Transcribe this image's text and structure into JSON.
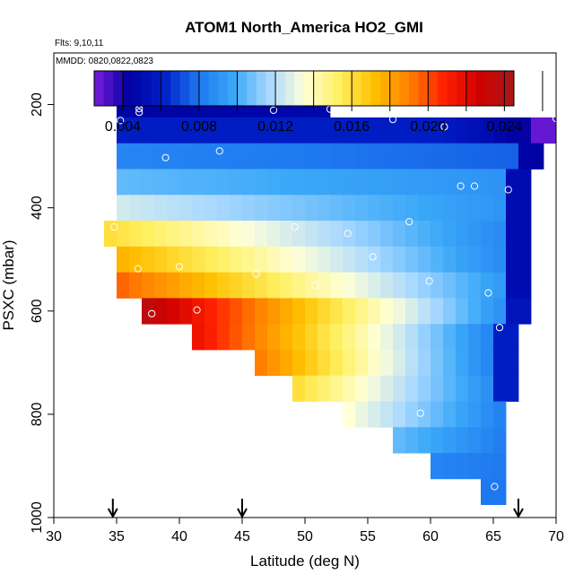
{
  "chart_data": {
    "type": "heatmap",
    "title": "ATOM1 North_America HO2_GMI",
    "annotations": [
      "Flts: 9,10,11",
      "MMDD: 0820,0822,0823"
    ],
    "xlabel": "Latitude (deg N)",
    "ylabel": "PSXC (mbar)",
    "xlim": [
      30,
      70
    ],
    "ylim": [
      1000,
      100
    ],
    "x_ticks": [
      30,
      35,
      40,
      45,
      50,
      55,
      60,
      65,
      70
    ],
    "y_ticks": [
      200,
      400,
      600,
      800,
      1000
    ],
    "cell_width_deg": 1,
    "cell_height_mbar": 50,
    "colorbar": {
      "min": 0.0025,
      "max": 0.0245,
      "ticks": [
        0.004,
        0.008,
        0.012,
        0.016,
        0.02,
        0.024
      ],
      "tick_labels": [
        "0.004",
        "0.008",
        "0.012",
        "0.016",
        "0.020",
        "0.024"
      ],
      "colors": [
        "#7a1cdc",
        "#0000a0",
        "#0020c8",
        "#1e78f0",
        "#3aa8f8",
        "#a8d8ff",
        "#ffffd8",
        "#fff060",
        "#ffc000",
        "#ff8000",
        "#ff2000",
        "#d00000",
        "#a81818"
      ]
    },
    "rows": [
      {
        "p": 200,
        "x0": 35,
        "x1": 52,
        "v0": 0.0045,
        "v1": 0.0048
      },
      {
        "p": 250,
        "x0": 35,
        "x1": 70,
        "v0": 0.006,
        "v1": 0.004,
        "flat_until": 60,
        "tail": 0.0028
      },
      {
        "p": 300,
        "x0": 35,
        "x1": 69,
        "v0": 0.0085,
        "v1": 0.0075,
        "tail": 0.0045
      },
      {
        "p": 350,
        "x0": 35,
        "x1": 68,
        "v0": 0.0105,
        "v1": 0.009,
        "tail": 0.005
      },
      {
        "p": 400,
        "x0": 35,
        "x1": 68,
        "v0": 0.0125,
        "v1": 0.009,
        "tail": 0.005
      },
      {
        "p": 450,
        "x0": 34,
        "x1": 68,
        "v0": 0.016,
        "v1": 0.0085,
        "tail": 0.005
      },
      {
        "p": 500,
        "x0": 35,
        "x1": 68,
        "v0": 0.0175,
        "v1": 0.0085,
        "tail": 0.005
      },
      {
        "p": 550,
        "x0": 35,
        "x1": 68,
        "v0": 0.0195,
        "v1": 0.009,
        "tail": 0.005
      },
      {
        "p": 600,
        "x0": 37,
        "x1": 68,
        "v0": 0.0235,
        "v1": 0.0085,
        "tail": 0.0055
      },
      {
        "p": 650,
        "x0": 41,
        "x1": 67,
        "v0": 0.0215,
        "v1": 0.008,
        "tail": 0.006
      },
      {
        "p": 700,
        "x0": 46,
        "x1": 67,
        "v0": 0.019,
        "v1": 0.008,
        "tail": 0.006
      },
      {
        "p": 750,
        "x0": 49,
        "x1": 67,
        "v0": 0.016,
        "v1": 0.0085,
        "tail": 0.006
      },
      {
        "p": 800,
        "x0": 53,
        "x1": 66,
        "v0": 0.0135,
        "v1": 0.008
      },
      {
        "p": 850,
        "x0": 57,
        "x1": 66,
        "v0": 0.0105,
        "v1": 0.008
      },
      {
        "p": 900,
        "x0": 60,
        "x1": 66,
        "v0": 0.0085,
        "v1": 0.008
      },
      {
        "p": 950,
        "x0": 64,
        "x1": 66,
        "v0": 0.008,
        "v1": 0.008
      }
    ],
    "points": [
      [
        35.3,
        231
      ],
      [
        35.9,
        190
      ],
      [
        36.5,
        190
      ],
      [
        36.8,
        200
      ],
      [
        36.8,
        208
      ],
      [
        36.8,
        215
      ],
      [
        34.8,
        437
      ],
      [
        38.9,
        303
      ],
      [
        43.2,
        290
      ],
      [
        47.5,
        211
      ],
      [
        52.0,
        209
      ],
      [
        57.0,
        229
      ],
      [
        61.1,
        243
      ],
      [
        70.0,
        227
      ],
      [
        62.4,
        358
      ],
      [
        63.5,
        358
      ],
      [
        66.2,
        365
      ],
      [
        58.3,
        427
      ],
      [
        53.4,
        450
      ],
      [
        49.2,
        437
      ],
      [
        55.4,
        495
      ],
      [
        36.7,
        518
      ],
      [
        40.0,
        514
      ],
      [
        46.1,
        528
      ],
      [
        50.8,
        550
      ],
      [
        59.9,
        542
      ],
      [
        64.6,
        565
      ],
      [
        37.8,
        605
      ],
      [
        41.4,
        598
      ],
      [
        65.5,
        632
      ],
      [
        59.2,
        798
      ],
      [
        65.1,
        940
      ]
    ],
    "arrows_x": [
      34.7,
      45.0,
      67.0
    ]
  }
}
